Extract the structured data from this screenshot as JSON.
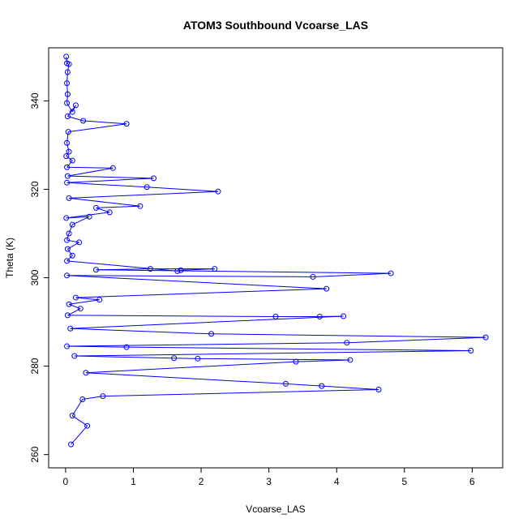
{
  "chart_data": {
    "type": "line",
    "title": "ATOM3 Southbound Vcoarse_LAS",
    "xlabel": "Vcoarse_LAS",
    "ylabel": "Theta (K)",
    "xlim": [
      -0.25,
      6.45
    ],
    "ylim": [
      257,
      352
    ],
    "x_ticks": [
      0,
      1,
      2,
      3,
      4,
      5,
      6
    ],
    "y_ticks": [
      260,
      280,
      300,
      320,
      340
    ],
    "x_tick_labels": [
      "0",
      "1",
      "2",
      "3",
      "4",
      "5",
      "6"
    ],
    "y_tick_labels": [
      "260",
      "280",
      "300",
      "320",
      "340"
    ],
    "grid": false,
    "legend": "none",
    "series_color": "#0000ff",
    "marker": "open-circle",
    "series": [
      {
        "points": [
          [
            0.01,
            350.0
          ],
          [
            0.02,
            348.5
          ],
          [
            0.05,
            348.3
          ],
          [
            0.03,
            346.5
          ],
          [
            0.02,
            344.0
          ],
          [
            0.03,
            341.5
          ],
          [
            0.02,
            339.5
          ],
          [
            0.1,
            337.5
          ],
          [
            0.15,
            339.0
          ],
          [
            0.03,
            336.5
          ],
          [
            0.26,
            335.5
          ],
          [
            0.9,
            334.8
          ],
          [
            0.04,
            333.0
          ],
          [
            0.02,
            330.5
          ],
          [
            0.05,
            328.5
          ],
          [
            0.01,
            327.5
          ],
          [
            0.1,
            326.5
          ],
          [
            0.02,
            325.0
          ],
          [
            0.7,
            324.8
          ],
          [
            0.03,
            323.0
          ],
          [
            1.3,
            322.5
          ],
          [
            0.02,
            321.5
          ],
          [
            1.2,
            320.5
          ],
          [
            2.25,
            319.5
          ],
          [
            0.05,
            318.0
          ],
          [
            1.1,
            316.2
          ],
          [
            0.45,
            315.8
          ],
          [
            0.65,
            314.8
          ],
          [
            0.01,
            313.5
          ],
          [
            0.35,
            313.8
          ],
          [
            0.1,
            312.0
          ],
          [
            0.05,
            310.0
          ],
          [
            0.02,
            308.5
          ],
          [
            0.2,
            308.0
          ],
          [
            0.03,
            306.5
          ],
          [
            0.1,
            305.0
          ],
          [
            0.02,
            303.8
          ],
          [
            1.65,
            301.5
          ],
          [
            1.7,
            301.7
          ],
          [
            2.2,
            302.0
          ],
          [
            1.25,
            302.0
          ],
          [
            0.45,
            301.8
          ],
          [
            4.8,
            301.0
          ],
          [
            3.65,
            300.2
          ],
          [
            0.02,
            300.5
          ],
          [
            3.85,
            297.5
          ],
          [
            0.15,
            295.5
          ],
          [
            0.5,
            295.0
          ],
          [
            0.05,
            294.0
          ],
          [
            0.22,
            293.0
          ],
          [
            0.03,
            291.5
          ],
          [
            3.1,
            291.2
          ],
          [
            3.75,
            291.2
          ],
          [
            4.1,
            291.3
          ],
          [
            0.07,
            288.5
          ],
          [
            2.15,
            287.3
          ],
          [
            6.2,
            286.5
          ],
          [
            4.15,
            285.3
          ],
          [
            0.02,
            284.5
          ],
          [
            0.9,
            284.3
          ],
          [
            5.98,
            283.5
          ],
          [
            0.13,
            282.3
          ],
          [
            1.6,
            281.8
          ],
          [
            1.95,
            281.7
          ],
          [
            4.2,
            281.4
          ],
          [
            3.4,
            281.0
          ],
          [
            0.3,
            278.5
          ],
          [
            3.25,
            276.0
          ],
          [
            3.78,
            275.5
          ],
          [
            4.62,
            274.7
          ],
          [
            0.55,
            273.2
          ],
          [
            0.25,
            272.5
          ],
          [
            0.1,
            268.8
          ],
          [
            0.32,
            266.5
          ],
          [
            0.08,
            262.3
          ]
        ]
      }
    ]
  }
}
